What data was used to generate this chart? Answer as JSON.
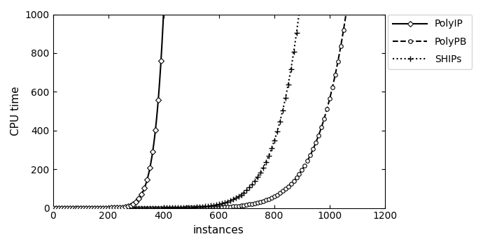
{
  "xlabel": "instances",
  "ylabel": "CPU time",
  "xlim": [
    0,
    1200
  ],
  "ylim": [
    0,
    1000
  ],
  "xticks": [
    0,
    200,
    400,
    600,
    800,
    1000,
    1200
  ],
  "yticks": [
    0,
    200,
    400,
    600,
    800,
    1000
  ],
  "legend_labels": [
    "PolyIP",
    "PolyPB",
    "SHIPs"
  ],
  "polyip_solved": 400,
  "polypb_solved": 1060,
  "ships_solved": 890,
  "n_total": 1200,
  "timeout": 1000,
  "background_color": "#ffffff",
  "line_color": "#000000",
  "polyip_power": 12.0,
  "polypb_power": 10.0,
  "ships_power": 10.0,
  "marker_step": 10
}
